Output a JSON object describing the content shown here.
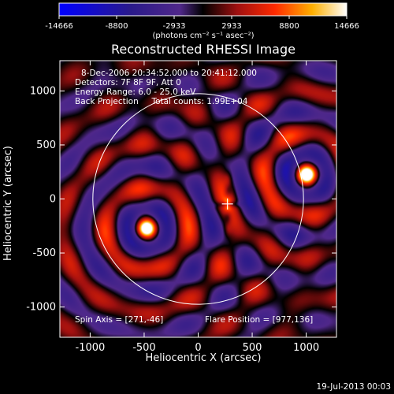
{
  "chart_data": {
    "type": "heatmap",
    "title": "Reconstructed RHESSI Image",
    "xlabel": "Heliocentric X (arcsec)",
    "ylabel": "Heliocentric Y (arcsec)",
    "xlim": [
      -1280,
      1280
    ],
    "ylim": [
      -1280,
      1280
    ],
    "xticks": [
      -1000,
      -500,
      0,
      500,
      1000
    ],
    "yticks": [
      -1000,
      -500,
      0,
      500,
      1000
    ],
    "colorbar": {
      "range": [
        -14666,
        14666
      ],
      "ticks": [
        -14666,
        -8800,
        -2933,
        2933,
        8800,
        14666
      ],
      "tick_labels": [
        "-14666",
        "-8800",
        "-2933",
        "2933",
        "8800",
        "14666"
      ],
      "unit_label": "(photons cm⁻² s⁻¹ asec⁻²)"
    },
    "annotations": [
      "8-Dec-2006 20:34:52.000 to 20:41:12.000",
      "Detectors: 7F 8F 9F, Att 0",
      "Energy Range: 6.0 - 25.0 keV",
      "Back Projection     Total counts: 1.99E+04"
    ],
    "spin_axis_label": "Spin Axis = [271,-46]",
    "flare_position_label": "Flare Position = [977,136]",
    "solar_disk": {
      "center": [
        0,
        0
      ],
      "radius": 975
    },
    "sources": [
      {
        "x": -480,
        "y": -270,
        "peak": 14666
      },
      {
        "x": 1000,
        "y": 230,
        "peak": 14666
      },
      {
        "x": 271,
        "y": -46,
        "peak": -14666
      }
    ],
    "spin_axis": [
      271,
      -46
    ],
    "grid": false
  },
  "footer": {
    "timestamp": "19-Jul-2013 00:03"
  },
  "colors": {
    "background": "#000000",
    "limb": "#ffffff"
  }
}
